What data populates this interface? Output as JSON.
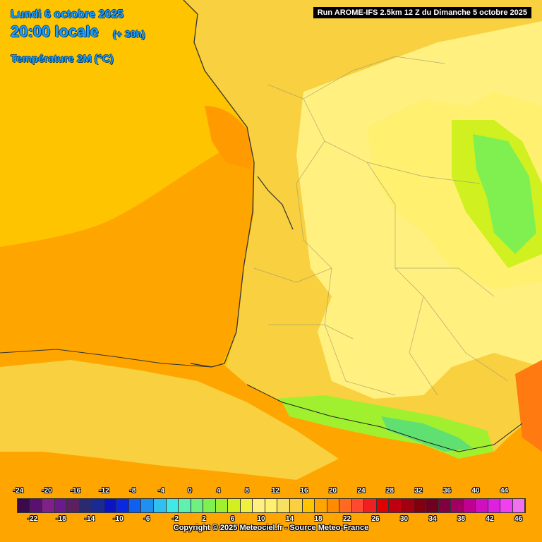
{
  "header": {
    "date": "Lundi 6 octobre 2025",
    "time": "20:00 locale",
    "offset": "(+ 30h)",
    "parameter": "Température 2M (°C)"
  },
  "run_banner": "Run AROME-IFS 2.5km 12 Z du Dimanche 5 octobre 2025",
  "legend": {
    "labels_top": [
      "-24",
      "-20",
      "-16",
      "-12",
      "-8",
      "-4",
      "0",
      "4",
      "8",
      "12",
      "16",
      "20",
      "24",
      "28",
      "32",
      "36",
      "40",
      "44"
    ],
    "labels_bottom": [
      "-22",
      "-18",
      "-14",
      "-10",
      "-6",
      "-2",
      "2",
      "6",
      "10",
      "14",
      "18",
      "22",
      "26",
      "30",
      "34",
      "38",
      "42",
      "46"
    ],
    "colors": [
      "#3a0a4a",
      "#5a1070",
      "#80208a",
      "#6a1a8a",
      "#5a2060",
      "#2a2a70",
      "#1a2a90",
      "#0a14c0",
      "#0a28e0",
      "#1060f0",
      "#2090f0",
      "#30c0f0",
      "#40e8e8",
      "#60f0b0",
      "#70f080",
      "#80f050",
      "#a0f030",
      "#d0f020",
      "#f0f040",
      "#fff080",
      "#fff070",
      "#f8e060",
      "#f8d040",
      "#ffc400",
      "#ffa500",
      "#ff8c00",
      "#ff6a20",
      "#ff4a30",
      "#f02020",
      "#e00000",
      "#c00010",
      "#a00010",
      "#800010",
      "#700020",
      "#800040",
      "#a00060",
      "#c00090",
      "#d010c0",
      "#e020e0",
      "#f040f0",
      "#f070f0"
    ]
  },
  "copyright": "Copyright © 2025 Meteociel.fr - Source Meteo-France"
}
